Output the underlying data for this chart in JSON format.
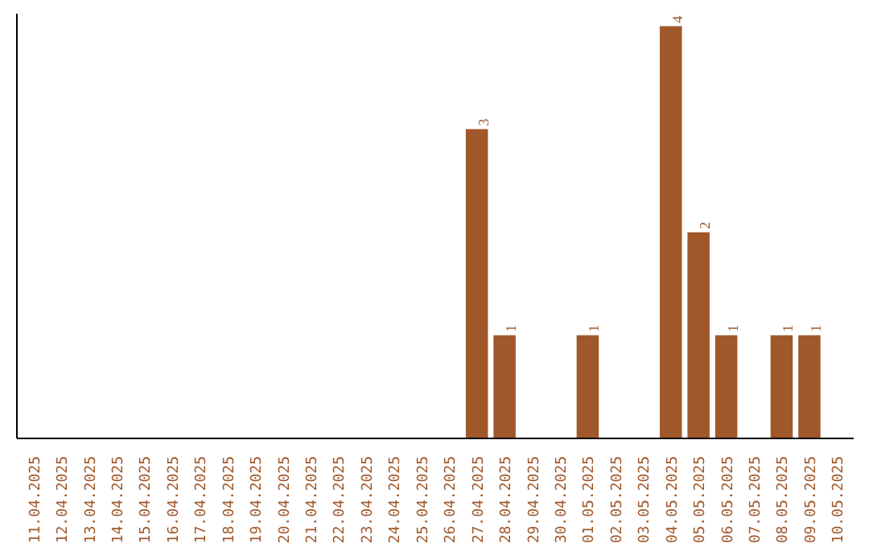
{
  "chart_data": {
    "type": "bar",
    "categories": [
      "11.04.2025",
      "12.04.2025",
      "13.04.2025",
      "14.04.2025",
      "15.04.2025",
      "16.04.2025",
      "17.04.2025",
      "18.04.2025",
      "19.04.2025",
      "20.04.2025",
      "21.04.2025",
      "22.04.2025",
      "23.04.2025",
      "24.04.2025",
      "25.04.2025",
      "26.04.2025",
      "27.04.2025",
      "28.04.2025",
      "29.04.2025",
      "30.04.2025",
      "01.05.2025",
      "02.05.2025",
      "03.05.2025",
      "04.05.2025",
      "05.05.2025",
      "06.05.2025",
      "07.05.2025",
      "08.05.2025",
      "09.05.2025",
      "10.05.2025"
    ],
    "values": [
      null,
      null,
      null,
      null,
      null,
      null,
      null,
      null,
      null,
      null,
      null,
      null,
      null,
      null,
      null,
      null,
      3,
      1,
      null,
      null,
      1,
      null,
      null,
      4,
      2,
      1,
      null,
      1,
      1,
      null
    ],
    "data_labels": true,
    "color": "#a0582a",
    "grid": false,
    "tick_labels": "x"
  }
}
